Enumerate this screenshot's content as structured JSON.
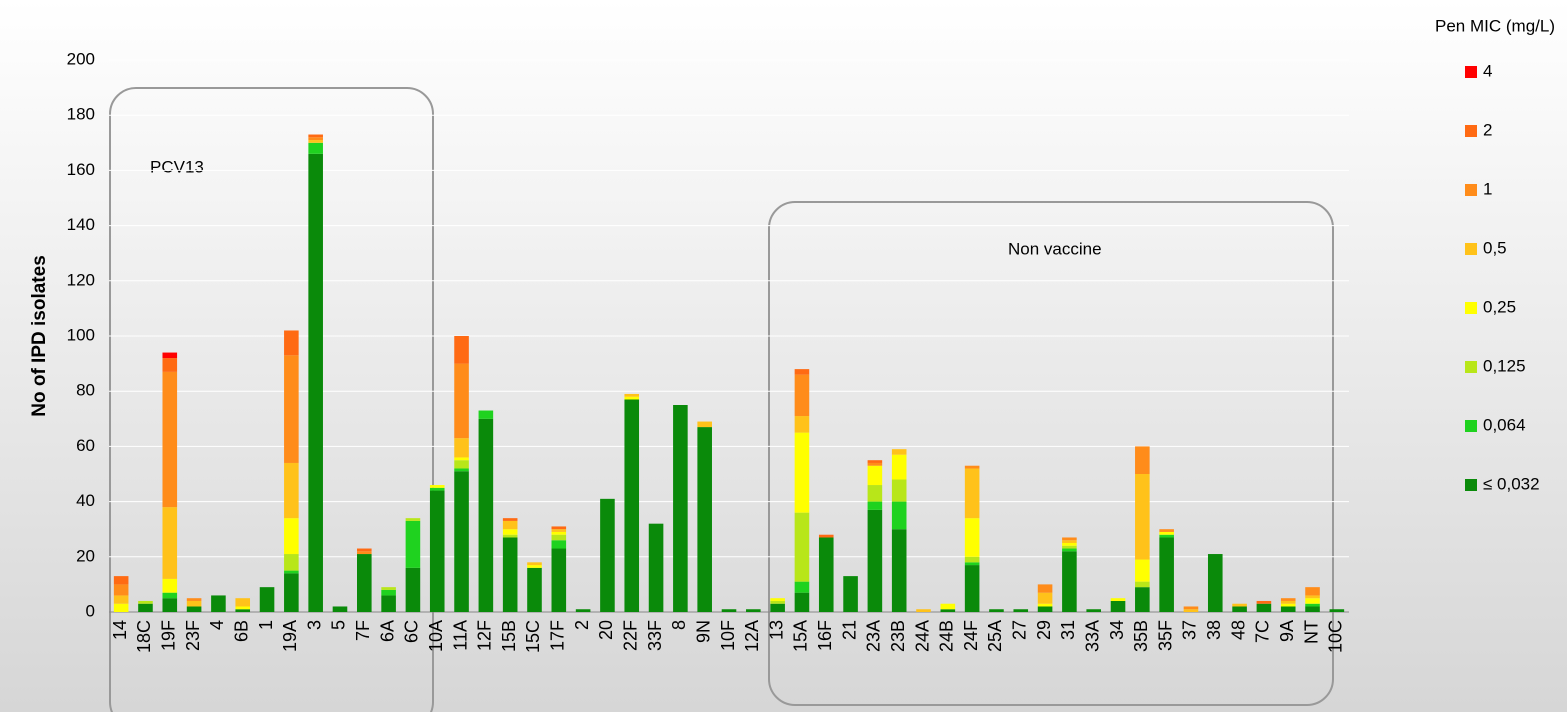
{
  "chart_data": {
    "type": "stacked_bar",
    "y_label": "No of IPD isolates",
    "legend_title": "Pen MIC (mg/L)",
    "annotations": [
      "PCV13",
      "Non vaccine"
    ],
    "categories": [
      "14",
      "18C",
      "19F",
      "23F",
      "4",
      "6B",
      "1",
      "19A",
      "3",
      "5",
      "7F",
      "6A",
      "6C",
      "10A",
      "11A",
      "12F",
      "15B",
      "15C",
      "17F",
      "2",
      "20",
      "22F",
      "33F",
      "8",
      "9N",
      "10F",
      "12A",
      "13",
      "15A",
      "16F",
      "21",
      "23A",
      "23B",
      "24A",
      "24B",
      "24F",
      "25A",
      "27",
      "29",
      "31",
      "33A",
      "34",
      "35B",
      "35F",
      "37",
      "38",
      "48",
      "7C",
      "9A",
      "NT",
      "10C"
    ],
    "series": [
      {
        "name": "≤ 0,032",
        "color": "#0a8a0a",
        "values": [
          0,
          3,
          5,
          2,
          6,
          1,
          9,
          14,
          166,
          2,
          21,
          6,
          16,
          44,
          51,
          70,
          27,
          16,
          23,
          1,
          41,
          77,
          32,
          75,
          67,
          1,
          1,
          3,
          7,
          27,
          13,
          37,
          30,
          0,
          1,
          17,
          1,
          1,
          2,
          22,
          1,
          4,
          9,
          27,
          0,
          21,
          2,
          3,
          2,
          2,
          1
        ]
      },
      {
        "name": "0,064",
        "color": "#1fd21f",
        "values": [
          0,
          0,
          2,
          0,
          0,
          0,
          0,
          1,
          4,
          0,
          0,
          2,
          17,
          1,
          1,
          3,
          0,
          0,
          3,
          0,
          0,
          0,
          0,
          0,
          0,
          0,
          0,
          0,
          4,
          0,
          0,
          3,
          10,
          0,
          0,
          1,
          0,
          0,
          0,
          1,
          0,
          0,
          0,
          1,
          0,
          0,
          0,
          0,
          0,
          1,
          0
        ]
      },
      {
        "name": "0,125",
        "color": "#b8e619",
        "values": [
          0,
          1,
          0,
          0,
          0,
          0,
          0,
          6,
          0,
          0,
          0,
          1,
          1,
          0,
          3,
          0,
          1,
          0,
          2,
          0,
          0,
          0,
          0,
          0,
          0,
          0,
          0,
          1,
          25,
          0,
          0,
          6,
          8,
          0,
          0,
          2,
          0,
          0,
          0,
          1,
          0,
          0,
          2,
          0,
          0,
          0,
          0,
          0,
          0,
          0,
          0
        ]
      },
      {
        "name": "0,25",
        "color": "#ffff00",
        "values": [
          3,
          0,
          5,
          0,
          0,
          1,
          0,
          13,
          0,
          0,
          0,
          0,
          0,
          1,
          1,
          0,
          2,
          1,
          1,
          0,
          0,
          1,
          0,
          0,
          0,
          0,
          0,
          1,
          29,
          0,
          0,
          7,
          9,
          0,
          2,
          14,
          0,
          0,
          1,
          1,
          0,
          1,
          8,
          1,
          0,
          0,
          0,
          0,
          1,
          2,
          0
        ]
      },
      {
        "name": "0,5",
        "color": "#ffc21a",
        "values": [
          3,
          0,
          26,
          2,
          0,
          3,
          0,
          20,
          1,
          0,
          0,
          0,
          0,
          0,
          7,
          0,
          3,
          1,
          1,
          0,
          0,
          1,
          0,
          0,
          2,
          0,
          0,
          0,
          6,
          0,
          0,
          0,
          2,
          1,
          0,
          18,
          0,
          0,
          4,
          1,
          0,
          0,
          31,
          0,
          1,
          0,
          1,
          0,
          1,
          1,
          0
        ]
      },
      {
        "name": "1",
        "color": "#ff8c1a",
        "values": [
          4,
          0,
          49,
          1,
          0,
          0,
          0,
          39,
          1,
          0,
          1,
          0,
          0,
          0,
          27,
          0,
          0,
          0,
          0,
          0,
          0,
          0,
          0,
          0,
          0,
          0,
          0,
          0,
          15,
          0,
          0,
          1,
          0,
          0,
          0,
          1,
          0,
          0,
          3,
          1,
          0,
          0,
          10,
          1,
          1,
          0,
          0,
          0,
          1,
          3,
          0
        ]
      },
      {
        "name": "2",
        "color": "#ff6a13",
        "values": [
          3,
          0,
          5,
          0,
          0,
          0,
          0,
          9,
          1,
          0,
          1,
          0,
          0,
          0,
          10,
          0,
          1,
          0,
          1,
          0,
          0,
          0,
          0,
          0,
          0,
          0,
          0,
          0,
          2,
          1,
          0,
          1,
          0,
          0,
          0,
          0,
          0,
          0,
          0,
          0,
          0,
          0,
          0,
          0,
          0,
          0,
          0,
          1,
          0,
          0,
          0
        ]
      },
      {
        "name": "4",
        "color": "#ff0000",
        "values": [
          0,
          0,
          2,
          0,
          0,
          0,
          0,
          0,
          0,
          0,
          0,
          0,
          0,
          0,
          0,
          0,
          0,
          0,
          0,
          0,
          0,
          0,
          0,
          0,
          0,
          0,
          0,
          0,
          0,
          0,
          0,
          0,
          0,
          0,
          0,
          0,
          0,
          0,
          0,
          0,
          0,
          0,
          0,
          0,
          0,
          0,
          0,
          0,
          0,
          0,
          0
        ]
      }
    ],
    "ylim": [
      0,
      200
    ],
    "yticks": [
      0,
      20,
      40,
      60,
      80,
      100,
      120,
      140,
      160,
      180,
      200
    ],
    "grid": true
  }
}
